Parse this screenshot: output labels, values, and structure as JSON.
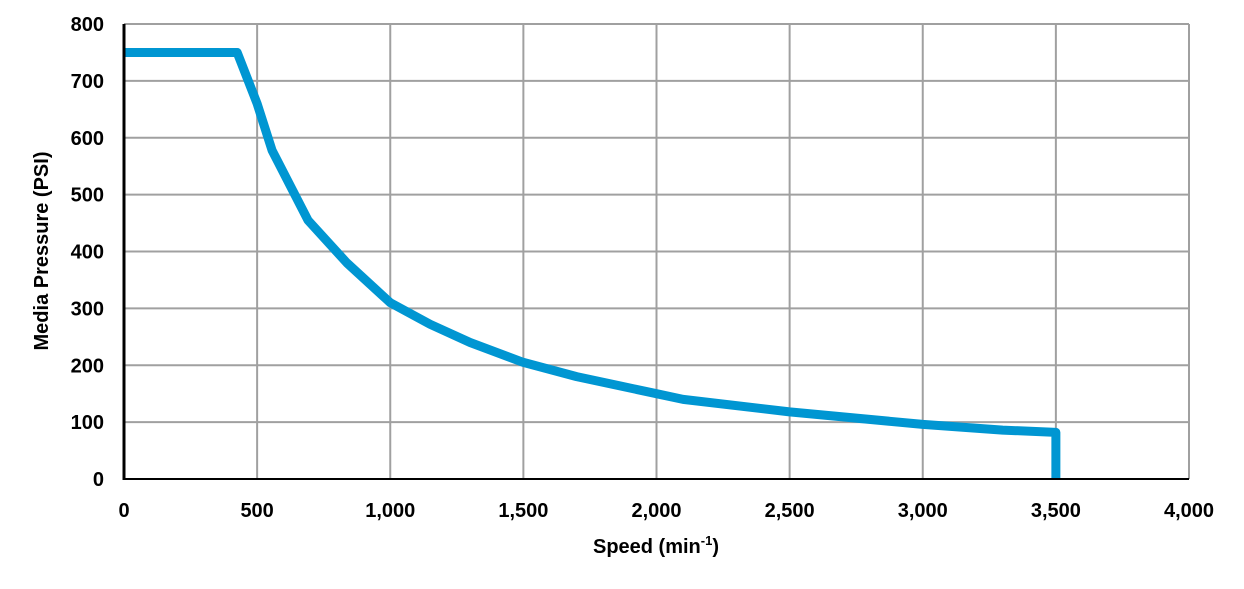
{
  "chart_data": {
    "type": "line",
    "title": "",
    "xlabel": "Speed (min-1)",
    "xlabel_parts": {
      "main": "Speed (min",
      "sup": "-1",
      "end": ")"
    },
    "ylabel": "Media Pressure (PSI)",
    "xlim": [
      0,
      4000
    ],
    "ylim": [
      0,
      800
    ],
    "x_ticks": [
      0,
      500,
      1000,
      1500,
      2000,
      2500,
      3000,
      3500,
      4000
    ],
    "x_tick_labels": [
      "0",
      "500",
      "1,000",
      "1,500",
      "2,000",
      "2,500",
      "3,000",
      "3,500",
      "4,000"
    ],
    "y_ticks": [
      0,
      100,
      200,
      300,
      400,
      500,
      600,
      700,
      800
    ],
    "y_tick_labels": [
      "0",
      "100",
      "200",
      "300",
      "400",
      "500",
      "600",
      "700",
      "800"
    ],
    "grid": true,
    "legend": "none",
    "series": [
      {
        "color": "#0096d2",
        "x": [
          0,
          425,
          500,
          556,
          691,
          837,
          1000,
          1150,
          1300,
          1500,
          1700,
          2000,
          2100,
          2500,
          3000,
          3300,
          3500,
          3500
        ],
        "y": [
          750,
          750,
          660,
          578,
          455,
          380,
          310,
          272,
          240,
          205,
          180,
          150,
          140,
          118,
          96,
          86,
          82,
          0
        ]
      }
    ]
  }
}
